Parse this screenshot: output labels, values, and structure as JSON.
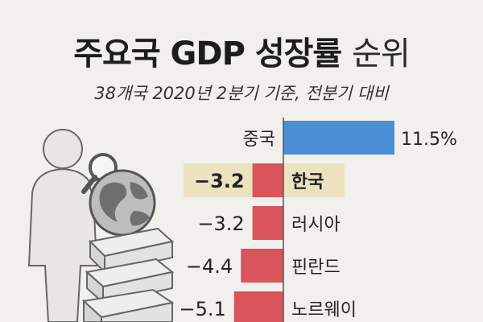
{
  "title_main": "주요국 GDP 성장률",
  "title_suffix": "순위",
  "subtitle": "38개국 2020년 2분기 기준, 전분기 대비",
  "colors": {
    "positive": "#4a8fd6",
    "negative": "#d9545b",
    "highlight": "#ece2c0",
    "zero_line": "#555555"
  },
  "chart_data": {
    "type": "bar",
    "orientation": "horizontal",
    "title": "주요국 GDP 성장률 순위",
    "subtitle": "38개국 2020년 2분기 기준, 전분기 대비",
    "categories": [
      "중국",
      "한국",
      "러시아",
      "핀란드",
      "노르웨이"
    ],
    "values": [
      11.5,
      -3.2,
      -3.2,
      -4.4,
      -5.1
    ],
    "value_labels": [
      "11.5%",
      "−3.2",
      "−3.2",
      "−4.4",
      "−5.1"
    ],
    "highlight": "한국",
    "grid": false,
    "legend": "none"
  }
}
